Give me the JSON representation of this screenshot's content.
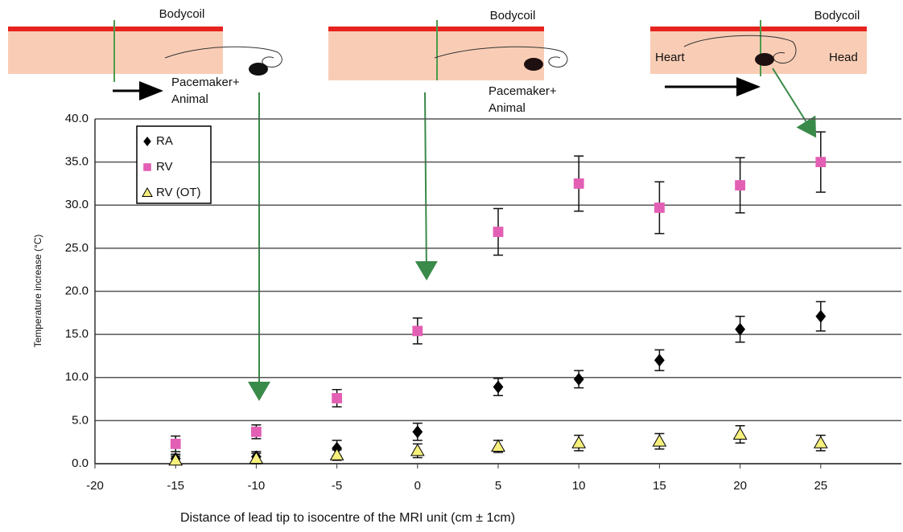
{
  "chart_data": {
    "type": "scatter",
    "x_label": "Distance of lead tip to isocentre of the MRI unit (cm ± 1cm)",
    "y_label": "Temperature increase (°C)",
    "xlim": [
      -20,
      30
    ],
    "ylim": [
      0,
      40
    ],
    "xticks": [
      -20,
      -15,
      -10,
      -5,
      0,
      5,
      10,
      15,
      20,
      25
    ],
    "yticks": [
      {
        "value": 0,
        "label": "0.0"
      },
      {
        "value": 5,
        "label": "5.0"
      },
      {
        "value": 10,
        "label": "10.0"
      },
      {
        "value": 15,
        "label": "15.0"
      },
      {
        "value": 20,
        "label": "20.0"
      },
      {
        "value": 25,
        "label": "25.0"
      },
      {
        "value": 30,
        "label": "30.0"
      },
      {
        "value": 35,
        "label": "35.0"
      },
      {
        "value": 40,
        "label": "40.0"
      }
    ],
    "grid": true,
    "legend": "upper left",
    "x": [
      -15,
      -10,
      -5,
      0,
      5,
      10,
      15,
      20,
      25
    ],
    "series": [
      {
        "name": "RA",
        "color": "#000000",
        "marker": "diamond",
        "values": [
          0.6,
          0.8,
          1.8,
          3.7,
          8.9,
          9.8,
          12.0,
          15.6,
          17.1
        ],
        "errors": [
          0.5,
          0.6,
          0.9,
          1.0,
          1.0,
          1.0,
          1.2,
          1.5,
          1.7
        ]
      },
      {
        "name": "RV",
        "color": "#e35fb4",
        "marker": "square",
        "values": [
          2.3,
          3.7,
          7.6,
          15.4,
          26.9,
          32.5,
          29.7,
          32.3,
          35.0
        ],
        "errors": [
          0.9,
          0.8,
          1.0,
          1.5,
          2.7,
          3.2,
          3.0,
          3.2,
          3.5
        ]
      },
      {
        "name": "RV (OT)",
        "color": "#f5ef7c",
        "marker": "triangle",
        "values": [
          0.4,
          0.6,
          1.0,
          1.5,
          2.0,
          2.4,
          2.6,
          3.4,
          2.4
        ],
        "errors": [
          0.5,
          0.6,
          0.6,
          0.8,
          0.7,
          0.9,
          0.9,
          1.0,
          0.9
        ]
      }
    ],
    "annotations": [
      "Bodycoil",
      "Pacemaker+",
      "Animal",
      "Bodycoil",
      "Pacemaker+",
      "Animal",
      "Bodycoil",
      "Heart",
      "Head"
    ]
  }
}
